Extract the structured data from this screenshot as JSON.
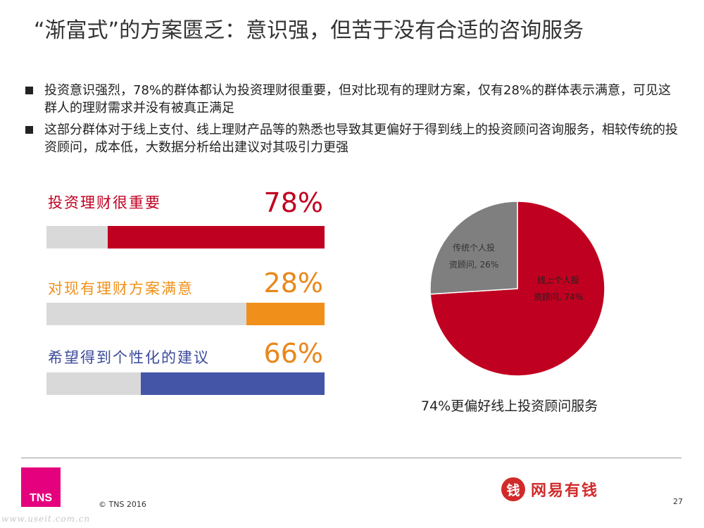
{
  "title": "“渐富式”的方案匮乏：意识强，但苦于没有合适的咨询服务",
  "bullets": [
    "投资意识强烈，78%的群体都认为投资理财很重要，但对比现有的理财方案，仅有28%的群体表示满意，可见这群人的理财需求并没有被真正满足",
    "这部分群体对于线上支付、线上理财产品等的熟悉也导致其更偏好于得到线上的投资顾问咨询服务，相较传统的投资顾问，成本低，大数据分析给出建议对其吸引力更强"
  ],
  "chart_data": [
    {
      "type": "bar",
      "orientation": "horizontal",
      "items": [
        {
          "label": "投资理财很重要",
          "pct_label": "78%",
          "value": 78,
          "label_color": "#c00020",
          "fill_color": "#c00020",
          "pct_color": "#c00020"
        },
        {
          "label": "对现有理财方案满意",
          "pct_label": "28%",
          "value": 28,
          "label_color": "#f0901a",
          "fill_color": "#f0901a",
          "pct_color": "#e8871a"
        },
        {
          "label": "希望得到个性化的建议",
          "pct_label": "66%",
          "value": 66,
          "label_color": "#3a4a9a",
          "fill_color": "#4455a8",
          "pct_color": "#e8871a"
        }
      ],
      "xlim": [
        0,
        100
      ],
      "track_color": "#d9d9d9"
    },
    {
      "type": "pie",
      "slices": [
        {
          "name": "线上个人投资顾问",
          "value": 74,
          "label_lines": [
            "线上个人投",
            "资顾问, 74%"
          ],
          "color": "#c00020"
        },
        {
          "name": "传统个人投资顾问",
          "value": 26,
          "label_lines": [
            "传统个人投",
            "资顾问, 26%"
          ],
          "color": "#7f7f7f"
        }
      ],
      "caption": "74%更偏好线上投资顾问服务"
    }
  ],
  "footer": {
    "logo": "TNS",
    "copyright": "© TNS 2016",
    "brand_icon": "钱",
    "brand_name": "网易有钱",
    "page_number": "27",
    "watermark": "www.useit.com.cn"
  }
}
